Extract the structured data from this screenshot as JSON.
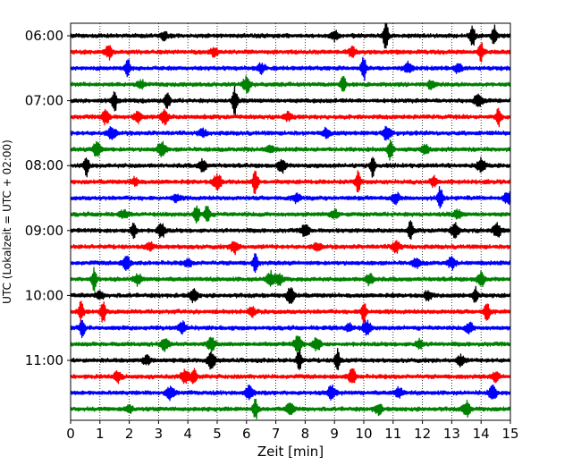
{
  "chart_data": {
    "type": "line",
    "title": "",
    "xlabel": "Zeit  [min]",
    "ylabel": "UTC (Lokalzeit = UTC + 02:00)",
    "xlim": [
      0,
      15
    ],
    "x_ticks": [
      0,
      1,
      2,
      3,
      4,
      5,
      6,
      7,
      8,
      9,
      10,
      11,
      12,
      13,
      14,
      15
    ],
    "x_tick_labels": [
      "0",
      "1",
      "2",
      "3",
      "4",
      "5",
      "6",
      "7",
      "8",
      "9",
      "10",
      "11",
      "12",
      "13",
      "14",
      "15"
    ],
    "y_tick_labels": [
      "06:00",
      "07:00",
      "08:00",
      "09:00",
      "10:00",
      "11:00"
    ],
    "y_ticks_at_trace": [
      0,
      4,
      8,
      12,
      16,
      20
    ],
    "grid": "vertical dotted",
    "trace_count": 24,
    "minutes_per_trace": 15,
    "color_cycle": [
      "#000000",
      "#ff0000",
      "#0000ff",
      "#008000"
    ],
    "events": [
      [
        [
          10.75,
          1.0
        ],
        [
          13.7,
          0.8
        ],
        [
          14.45,
          0.7
        ],
        [
          3.2,
          0.25
        ],
        [
          9.0,
          0.3
        ]
      ],
      [
        [
          1.3,
          0.45
        ],
        [
          14.0,
          0.6
        ],
        [
          4.9,
          0.25
        ],
        [
          9.6,
          0.3
        ]
      ],
      [
        [
          1.95,
          0.6
        ],
        [
          10.0,
          0.8
        ],
        [
          11.5,
          0.4
        ],
        [
          6.5,
          0.3
        ],
        [
          13.2,
          0.3
        ]
      ],
      [
        [
          6.0,
          0.5
        ],
        [
          9.3,
          0.6
        ],
        [
          12.3,
          0.25
        ],
        [
          2.4,
          0.25
        ]
      ],
      [
        [
          1.5,
          0.65
        ],
        [
          3.3,
          0.65
        ],
        [
          5.6,
          0.9
        ],
        [
          13.9,
          0.5
        ]
      ],
      [
        [
          1.2,
          0.5
        ],
        [
          2.3,
          0.35
        ],
        [
          3.2,
          0.5
        ],
        [
          14.6,
          0.6
        ],
        [
          7.4,
          0.25
        ]
      ],
      [
        [
          1.4,
          0.5
        ],
        [
          10.8,
          0.5
        ],
        [
          8.7,
          0.3
        ],
        [
          4.5,
          0.25
        ]
      ],
      [
        [
          0.9,
          0.55
        ],
        [
          3.1,
          0.55
        ],
        [
          10.9,
          0.7
        ],
        [
          12.1,
          0.3
        ],
        [
          6.8,
          0.25
        ]
      ],
      [
        [
          0.55,
          0.7
        ],
        [
          4.5,
          0.4
        ],
        [
          7.2,
          0.5
        ],
        [
          10.3,
          0.7
        ],
        [
          14.0,
          0.45
        ]
      ],
      [
        [
          5.0,
          0.55
        ],
        [
          6.3,
          0.9
        ],
        [
          9.8,
          0.7
        ],
        [
          12.4,
          0.3
        ],
        [
          2.2,
          0.25
        ]
      ],
      [
        [
          7.7,
          0.3
        ],
        [
          11.1,
          0.35
        ],
        [
          12.6,
          0.8
        ],
        [
          14.9,
          0.4
        ],
        [
          3.6,
          0.25
        ]
      ],
      [
        [
          4.3,
          0.7
        ],
        [
          4.65,
          0.7
        ],
        [
          9.0,
          0.3
        ],
        [
          13.2,
          0.3
        ],
        [
          1.8,
          0.25
        ]
      ],
      [
        [
          2.15,
          0.7
        ],
        [
          3.1,
          0.5
        ],
        [
          8.0,
          0.45
        ],
        [
          11.6,
          0.6
        ],
        [
          13.1,
          0.45
        ],
        [
          14.55,
          0.45
        ]
      ],
      [
        [
          5.6,
          0.45
        ],
        [
          8.4,
          0.3
        ],
        [
          11.1,
          0.4
        ],
        [
          2.7,
          0.25
        ]
      ],
      [
        [
          1.9,
          0.45
        ],
        [
          6.3,
          0.6
        ],
        [
          11.8,
          0.3
        ],
        [
          13.0,
          0.35
        ],
        [
          4.0,
          0.25
        ]
      ],
      [
        [
          0.8,
          0.8
        ],
        [
          2.3,
          0.35
        ],
        [
          6.8,
          0.5
        ],
        [
          7.1,
          0.4
        ],
        [
          10.2,
          0.4
        ],
        [
          14.0,
          0.5
        ]
      ],
      [
        [
          4.2,
          0.45
        ],
        [
          7.5,
          0.55
        ],
        [
          12.2,
          0.3
        ],
        [
          13.8,
          0.6
        ],
        [
          1.0,
          0.25
        ]
      ],
      [
        [
          0.35,
          0.7
        ],
        [
          1.1,
          0.8
        ],
        [
          10.0,
          0.8
        ],
        [
          14.2,
          0.8
        ],
        [
          6.2,
          0.25
        ]
      ],
      [
        [
          0.4,
          0.6
        ],
        [
          3.8,
          0.45
        ],
        [
          9.5,
          0.3
        ],
        [
          10.1,
          0.5
        ],
        [
          13.6,
          0.35
        ]
      ],
      [
        [
          3.2,
          0.45
        ],
        [
          4.8,
          0.45
        ],
        [
          7.75,
          0.55
        ],
        [
          8.4,
          0.45
        ],
        [
          11.9,
          0.3
        ]
      ],
      [
        [
          4.8,
          0.55
        ],
        [
          7.8,
          0.8
        ],
        [
          9.1,
          0.75
        ],
        [
          13.3,
          0.35
        ],
        [
          2.6,
          0.3
        ]
      ],
      [
        [
          3.9,
          0.5
        ],
        [
          4.2,
          0.6
        ],
        [
          9.6,
          0.5
        ],
        [
          14.5,
          0.3
        ],
        [
          1.6,
          0.35
        ]
      ],
      [
        [
          3.4,
          0.5
        ],
        [
          6.1,
          0.45
        ],
        [
          8.9,
          0.5
        ],
        [
          11.2,
          0.35
        ],
        [
          14.4,
          0.45
        ]
      ],
      [
        [
          6.3,
          0.75
        ],
        [
          7.5,
          0.4
        ],
        [
          10.5,
          0.35
        ],
        [
          13.5,
          0.5
        ],
        [
          2.0,
          0.25
        ]
      ]
    ]
  }
}
